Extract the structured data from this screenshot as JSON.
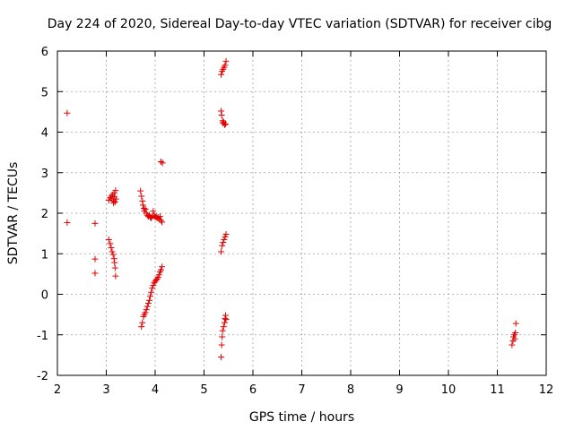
{
  "chart_data": {
    "type": "scatter",
    "title": "Day 224 of 2020, Sidereal Day-to-day VTEC variation (SDTVAR) for receiver cibg",
    "xlabel": "GPS time / hours",
    "ylabel": "SDTVAR / TECUs",
    "xlim": [
      2,
      12
    ],
    "ylim": [
      -2,
      6
    ],
    "xticks": [
      "2",
      "3",
      "4",
      "5",
      "6",
      "7",
      "8",
      "9",
      "10",
      "11",
      "12"
    ],
    "yticks": [
      "-2",
      "-1",
      "0",
      "1",
      "2",
      "3",
      "4",
      "5",
      "6"
    ],
    "grid": true,
    "marker": "plus",
    "color": "#e00000",
    "series": [
      {
        "name": "SDTVAR",
        "points": [
          [
            2.2,
            4.47
          ],
          [
            2.2,
            1.77
          ],
          [
            2.77,
            1.75
          ],
          [
            2.77,
            0.87
          ],
          [
            2.77,
            0.52
          ],
          [
            3.05,
            1.35
          ],
          [
            3.08,
            1.25
          ],
          [
            3.1,
            1.15
          ],
          [
            3.12,
            1.05
          ],
          [
            3.14,
            0.98
          ],
          [
            3.16,
            0.88
          ],
          [
            3.17,
            0.78
          ],
          [
            3.18,
            0.65
          ],
          [
            3.19,
            0.45
          ],
          [
            3.05,
            2.32
          ],
          [
            3.08,
            2.38
          ],
          [
            3.1,
            2.42
          ],
          [
            3.12,
            2.35
          ],
          [
            3.13,
            2.45
          ],
          [
            3.15,
            2.3
          ],
          [
            3.16,
            2.5
          ],
          [
            3.17,
            2.4
          ],
          [
            3.18,
            2.28
          ],
          [
            3.19,
            2.56
          ],
          [
            3.2,
            2.35
          ],
          [
            3.15,
            2.25
          ],
          [
            3.7,
            2.55
          ],
          [
            3.72,
            2.42
          ],
          [
            3.74,
            2.3
          ],
          [
            3.75,
            2.2
          ],
          [
            3.77,
            2.12
          ],
          [
            3.78,
            2.05
          ],
          [
            3.8,
            2.1
          ],
          [
            3.82,
            2.0
          ],
          [
            3.84,
            1.95
          ],
          [
            3.86,
            1.92
          ],
          [
            3.88,
            1.95
          ],
          [
            3.9,
            1.9
          ],
          [
            3.92,
            1.88
          ],
          [
            3.94,
            1.92
          ],
          [
            3.96,
            2.05
          ],
          [
            3.98,
            1.95
          ],
          [
            4.0,
            1.9
          ],
          [
            4.02,
            1.92
          ],
          [
            4.04,
            1.88
          ],
          [
            4.06,
            1.9
          ],
          [
            4.08,
            1.85
          ],
          [
            4.1,
            1.92
          ],
          [
            4.12,
            1.82
          ],
          [
            4.14,
            1.78
          ],
          [
            3.72,
            -0.8
          ],
          [
            3.74,
            -0.7
          ],
          [
            3.76,
            -0.55
          ],
          [
            3.78,
            -0.5
          ],
          [
            3.8,
            -0.45
          ],
          [
            3.82,
            -0.38
          ],
          [
            3.84,
            -0.3
          ],
          [
            3.86,
            -0.22
          ],
          [
            3.88,
            -0.15
          ],
          [
            3.9,
            -0.05
          ],
          [
            3.92,
            0.05
          ],
          [
            3.94,
            0.15
          ],
          [
            3.96,
            0.22
          ],
          [
            3.98,
            0.28
          ],
          [
            4.0,
            0.32
          ],
          [
            4.02,
            0.35
          ],
          [
            4.04,
            0.38
          ],
          [
            4.06,
            0.42
          ],
          [
            4.08,
            0.48
          ],
          [
            4.1,
            0.55
          ],
          [
            4.12,
            0.6
          ],
          [
            4.14,
            0.68
          ],
          [
            4.12,
            3.27
          ],
          [
            4.15,
            3.24
          ],
          [
            5.35,
            5.42
          ],
          [
            5.37,
            5.5
          ],
          [
            5.39,
            5.55
          ],
          [
            5.41,
            5.6
          ],
          [
            5.43,
            5.65
          ],
          [
            5.45,
            5.75
          ],
          [
            5.35,
            4.52
          ],
          [
            5.36,
            4.42
          ],
          [
            5.38,
            4.28
          ],
          [
            5.39,
            4.22
          ],
          [
            5.4,
            4.25
          ],
          [
            5.42,
            4.18
          ],
          [
            5.44,
            4.2
          ],
          [
            5.35,
            1.05
          ],
          [
            5.37,
            1.2
          ],
          [
            5.39,
            1.28
          ],
          [
            5.41,
            1.35
          ],
          [
            5.43,
            1.42
          ],
          [
            5.45,
            1.48
          ],
          [
            5.35,
            -1.55
          ],
          [
            5.36,
            -1.25
          ],
          [
            5.37,
            -1.05
          ],
          [
            5.38,
            -0.9
          ],
          [
            5.4,
            -0.8
          ],
          [
            5.42,
            -0.7
          ],
          [
            5.43,
            -0.6
          ],
          [
            5.44,
            -0.52
          ],
          [
            5.45,
            -0.62
          ],
          [
            11.3,
            -1.25
          ],
          [
            11.32,
            -1.15
          ],
          [
            11.33,
            -1.05
          ],
          [
            11.35,
            -1.0
          ],
          [
            11.37,
            -0.95
          ],
          [
            11.38,
            -0.72
          ],
          [
            11.36,
            -1.1
          ]
        ]
      }
    ]
  }
}
